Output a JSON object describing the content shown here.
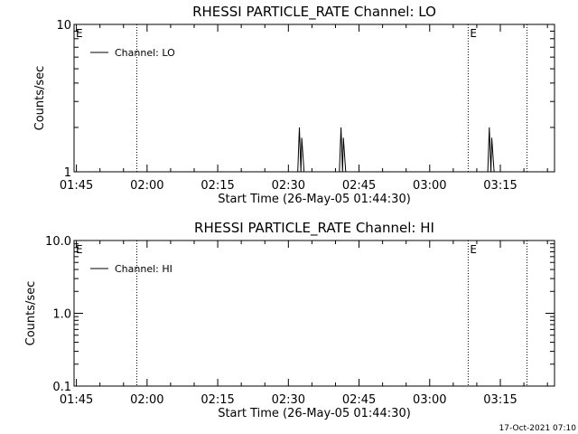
{
  "footer": {
    "timestamp": "17-Oct-2021 07:10"
  },
  "chart_data": [
    {
      "type": "line",
      "title": "RHESSI PARTICLE_RATE Channel: LO",
      "xlabel": "Start Time (26-May-05 01:44:30)",
      "ylabel": "Counts/sec",
      "yscale": "log",
      "ylim": [
        1,
        10
      ],
      "yticks": [
        "1",
        "10"
      ],
      "xlim_minutes_after_start": [
        0,
        102
      ],
      "xticks": [
        "01:45",
        "02:00",
        "02:15",
        "02:30",
        "02:45",
        "03:00",
        "03:15"
      ],
      "grid": false,
      "legend_placement": "top-left",
      "series": [
        {
          "name": "Channel: LO",
          "x": [
            "01:44:30",
            "02:32:00",
            "02:32:20",
            "02:32:40",
            "02:32:50",
            "02:33:20",
            "02:40:50",
            "02:41:10",
            "02:41:30",
            "02:41:40",
            "02:42:10",
            "03:12:20",
            "03:12:40",
            "03:13:00",
            "03:13:10",
            "03:13:40",
            "03:22:30"
          ],
          "y": [
            1,
            1,
            2,
            1,
            1.7,
            1,
            1,
            2,
            1,
            1.7,
            1,
            1,
            2,
            1,
            1.7,
            1,
            1
          ]
        }
      ],
      "markers": [
        {
          "time": "01:44:30",
          "label": "E",
          "line": false
        },
        {
          "time": "01:57:50",
          "label": "",
          "line": true
        },
        {
          "time": "03:08:10",
          "label": "E",
          "line": true
        },
        {
          "time": "03:20:40",
          "label": "",
          "line": true
        }
      ]
    },
    {
      "type": "line",
      "title": "RHESSI PARTICLE_RATE Channel: HI",
      "xlabel": "Start Time (26-May-05 01:44:30)",
      "ylabel": "Counts/sec",
      "yscale": "log",
      "ylim": [
        0.1,
        10
      ],
      "yticks": [
        "0.1",
        "1.0",
        "10.0"
      ],
      "xlim_minutes_after_start": [
        0,
        102
      ],
      "xticks": [
        "01:45",
        "02:00",
        "02:15",
        "02:30",
        "02:45",
        "03:00",
        "03:15"
      ],
      "grid": false,
      "legend_placement": "top-left",
      "series": [
        {
          "name": "Channel: HI",
          "x": [],
          "y": []
        }
      ],
      "markers": [
        {
          "time": "01:44:30",
          "label": "E",
          "line": false
        },
        {
          "time": "01:57:50",
          "label": "",
          "line": true
        },
        {
          "time": "03:08:10",
          "label": "E",
          "line": true
        },
        {
          "time": "03:20:40",
          "label": "",
          "line": true
        }
      ]
    }
  ]
}
